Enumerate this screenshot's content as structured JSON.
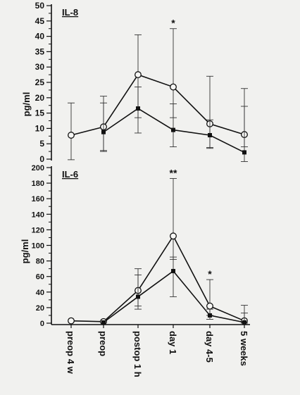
{
  "chart_data": [
    {
      "type": "line",
      "panel_label": "IL-8",
      "ylabel": "pg/ml",
      "ylim": [
        0,
        50
      ],
      "yticks": [
        0,
        5,
        10,
        15,
        20,
        25,
        30,
        35,
        40,
        45,
        50
      ],
      "categories": [
        "preop 4 w",
        "preop",
        "postop 1 h",
        "day 1",
        "day 4-5",
        "5 weeks"
      ],
      "significance": [
        {
          "category": "day 1",
          "label": "*"
        }
      ],
      "series": [
        {
          "marker": "open-circle",
          "color": "#111111",
          "values": [
            7.8,
            10.5,
            27.5,
            23.5,
            11.5,
            8.0
          ],
          "error_up": [
            10.5,
            10.0,
            13.0,
            19.0,
            15.5,
            15.0
          ],
          "error_down": [
            8.0,
            8.0,
            14.0,
            10.0,
            8.0,
            4.0
          ]
        },
        {
          "marker": "filled-square",
          "color": "#111111",
          "values": [
            null,
            8.8,
            16.5,
            9.5,
            7.8,
            2.2
          ],
          "error_up": [
            null,
            9.5,
            7.0,
            8.5,
            5.0,
            15.0
          ],
          "error_down": [
            null,
            6.0,
            8.0,
            5.5,
            4.0,
            3.0
          ]
        }
      ]
    },
    {
      "type": "line",
      "panel_label": "IL-6",
      "ylabel": "pg/ml",
      "ylim": [
        0,
        200
      ],
      "yticks": [
        0,
        20,
        40,
        60,
        80,
        100,
        120,
        140,
        160,
        180,
        200
      ],
      "categories": [
        "preop 4 w",
        "preop",
        "postop 1 h",
        "day 1",
        "day 4-5",
        "5 weeks"
      ],
      "significance": [
        {
          "category": "day 1",
          "label": "**"
        },
        {
          "category": "day 4-5",
          "label": "*"
        }
      ],
      "series": [
        {
          "marker": "open-circle",
          "color": "#111111",
          "values": [
            3,
            2,
            42,
            112,
            22,
            3
          ],
          "error_up": [
            0,
            0,
            28,
            74,
            34,
            20
          ],
          "error_down": [
            0,
            0,
            20,
            30,
            12,
            3
          ]
        },
        {
          "marker": "filled-square",
          "color": "#111111",
          "values": [
            null,
            1,
            34,
            67,
            10,
            1
          ],
          "error_up": [
            null,
            0,
            28,
            18,
            8,
            12
          ],
          "error_down": [
            null,
            0,
            16,
            33,
            5,
            1
          ]
        }
      ]
    }
  ]
}
